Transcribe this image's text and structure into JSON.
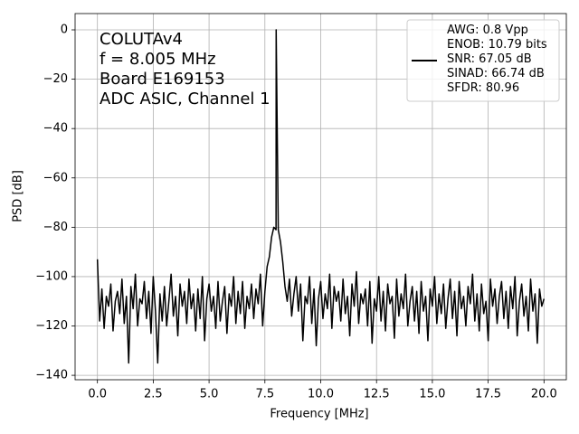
{
  "chart_data": {
    "type": "line",
    "xlabel": "Frequency [MHz]",
    "ylabel": "PSD [dB]",
    "annotation": [
      "COLUTAv4",
      "f = 8.005 MHz",
      "Board E169153",
      "ADC ASIC, Channel 1"
    ],
    "xlim": [
      -1,
      21
    ],
    "ylim": [
      -141.8,
      6.6
    ],
    "xticks": [
      {
        "value": 0,
        "label": "0.0"
      },
      2.5,
      {
        "value": 5,
        "label": "5.0"
      },
      7.5,
      {
        "value": 10,
        "label": "10.0"
      },
      12.5,
      {
        "value": 15,
        "label": "15.0"
      },
      17.5,
      {
        "value": 20,
        "label": "20.0"
      }
    ],
    "yticks": [
      0,
      {
        "value": -20,
        "label": "−20"
      },
      {
        "value": -40,
        "label": "−40"
      },
      {
        "value": -60,
        "label": "−60"
      },
      {
        "value": -80,
        "label": "−80"
      },
      {
        "value": -100,
        "label": "−100"
      },
      {
        "value": -120,
        "label": "−120"
      },
      {
        "value": -140,
        "label": "−140"
      }
    ],
    "grid": true,
    "legend": "upper right",
    "x": [
      0,
      0.1,
      0.2,
      0.3,
      0.4,
      0.5,
      0.6,
      0.7,
      0.8,
      0.9,
      1,
      1.1,
      1.2,
      1.3,
      1.4,
      1.5,
      1.6,
      1.7,
      1.8,
      1.9,
      2,
      2.1,
      2.2,
      2.3,
      2.4,
      2.5,
      2.6,
      2.7,
      2.8,
      2.9,
      3,
      3.1,
      3.2,
      3.3,
      3.4,
      3.5,
      3.6,
      3.7,
      3.8,
      3.9,
      4,
      4.1,
      4.2,
      4.3,
      4.4,
      4.5,
      4.6,
      4.7,
      4.8,
      4.9,
      5,
      5.1,
      5.2,
      5.3,
      5.4,
      5.5,
      5.6,
      5.7,
      5.8,
      5.9,
      6,
      6.1,
      6.2,
      6.3,
      6.4,
      6.5,
      6.6,
      6.7,
      6.8,
      6.9,
      7,
      7.1,
      7.2,
      7.3,
      7.4,
      7.5,
      7.6,
      7.7,
      7.8,
      7.9,
      8,
      8.005,
      8.1,
      8.2,
      8.3,
      8.4,
      8.5,
      8.6,
      8.7,
      8.8,
      8.9,
      9,
      9.1,
      9.2,
      9.3,
      9.4,
      9.5,
      9.6,
      9.7,
      9.8,
      9.9,
      10,
      10.1,
      10.2,
      10.3,
      10.4,
      10.5,
      10.6,
      10.7,
      10.8,
      10.9,
      11,
      11.1,
      11.2,
      11.3,
      11.4,
      11.5,
      11.6,
      11.7,
      11.8,
      11.9,
      12,
      12.1,
      12.2,
      12.3,
      12.4,
      12.5,
      12.6,
      12.7,
      12.8,
      12.9,
      13,
      13.1,
      13.2,
      13.3,
      13.4,
      13.5,
      13.6,
      13.7,
      13.8,
      13.9,
      14,
      14.1,
      14.2,
      14.3,
      14.4,
      14.5,
      14.6,
      14.7,
      14.8,
      14.9,
      15,
      15.1,
      15.2,
      15.3,
      15.4,
      15.5,
      15.6,
      15.7,
      15.8,
      15.9,
      16,
      16.1,
      16.2,
      16.3,
      16.4,
      16.5,
      16.6,
      16.7,
      16.8,
      16.9,
      17,
      17.1,
      17.2,
      17.3,
      17.4,
      17.5,
      17.6,
      17.7,
      17.8,
      17.9,
      18,
      18.1,
      18.2,
      18.3,
      18.4,
      18.5,
      18.6,
      18.7,
      18.8,
      18.9,
      19,
      19.1,
      19.2,
      19.3,
      19.4,
      19.5,
      19.6,
      19.7,
      19.8,
      19.9,
      20
    ],
    "series": [
      {
        "name": "AWG: 0.8 Vpp\nENOB: 10.79 bits\nSNR: 67.05 dB\nSINAD: 66.74 dB\nSFDR: 80.96",
        "color": "#000000",
        "values": [
          -93,
          -118,
          -105,
          -121,
          -108,
          -112,
          -103,
          -122,
          -110,
          -106,
          -115,
          -101,
          -119,
          -108,
          -135,
          -104,
          -113,
          -99,
          -120,
          -109,
          -111,
          -102,
          -117,
          -106,
          -123,
          -100,
          -114,
          -135,
          -107,
          -118,
          -104,
          -120,
          -110,
          -99,
          -116,
          -108,
          -124,
          -103,
          -112,
          -106,
          -119,
          -101,
          -113,
          -107,
          -122,
          -105,
          -117,
          -100,
          -126,
          -109,
          -103,
          -114,
          -108,
          -121,
          -102,
          -118,
          -110,
          -104,
          -123,
          -107,
          -112,
          -100,
          -119,
          -106,
          -115,
          -102,
          -121,
          -108,
          -113,
          -103,
          -117,
          -105,
          -111,
          -99,
          -120,
          -106,
          -96,
          -92,
          -84,
          -80,
          -81,
          0,
          -81,
          -86,
          -94,
          -104,
          -110,
          -101,
          -116,
          -107,
          -100,
          -114,
          -103,
          -126,
          -108,
          -111,
          -100,
          -119,
          -105,
          -128,
          -109,
          -102,
          -117,
          -107,
          -113,
          -99,
          -121,
          -104,
          -110,
          -106,
          -118,
          -101,
          -115,
          -108,
          -124,
          -103,
          -112,
          -98,
          -119,
          -107,
          -111,
          -105,
          -120,
          -102,
          -127,
          -109,
          -114,
          -100,
          -118,
          -106,
          -122,
          -103,
          -111,
          -108,
          -125,
          -101,
          -116,
          -107,
          -113,
          -99,
          -120,
          -110,
          -104,
          -118,
          -106,
          -123,
          -102,
          -114,
          -108,
          -126,
          -105,
          -112,
          -100,
          -119,
          -107,
          -115,
          -103,
          -121,
          -109,
          -101,
          -117,
          -106,
          -124,
          -102,
          -113,
          -108,
          -120,
          -104,
          -111,
          -99,
          -118,
          -107,
          -122,
          -103,
          -115,
          -110,
          -126,
          -101,
          -112,
          -105,
          -119,
          -108,
          -102,
          -117,
          -106,
          -121,
          -104,
          -113,
          -100,
          -124,
          -110,
          -103,
          -116,
          -108,
          -122,
          -101,
          -114,
          -107,
          -127,
          -105,
          -112,
          -109
        ]
      }
    ]
  }
}
